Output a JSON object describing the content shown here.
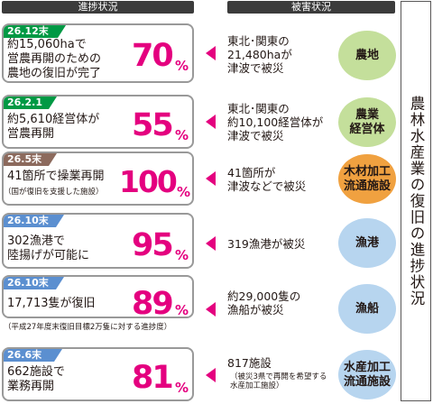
{
  "headers": {
    "progress": "進捗状況",
    "damage": "被害状況"
  },
  "side_title": "農林水産業の復旧の進捗状況",
  "colors": {
    "header": "#3b3b3b",
    "percent": "#e4007f",
    "arrow": "#e4007f",
    "green_tag": "#009944",
    "brown_tag": "#8c6a5d",
    "blue_tag": "#5b8fd0",
    "green_circle": "#c4df9b",
    "orange_circle": "#f0a140",
    "blue_circle": "#b7d5ef"
  },
  "rows": [
    {
      "date": "26.12末",
      "desc": "約15,060haで\n営農再開のための\n農地の復旧が完了",
      "desc_note": "",
      "percent": "70",
      "unit": "%",
      "damage": "東北･関東の\n21,480haが\n津波で被災",
      "damage_note": "",
      "sector": "農地"
    },
    {
      "date": "26.2.1",
      "desc": "約5,610経営体が\n営農再開",
      "desc_note": "",
      "percent": "55",
      "unit": "%",
      "damage": "東北･関東の\n約10,100経営体が\n津波で被災",
      "damage_note": "",
      "sector": "農業\n経営体"
    },
    {
      "date": "26.5末",
      "desc": "41箇所で操業再開",
      "desc_note": "（国が復旧を支援した施設）",
      "percent": "100",
      "unit": "%",
      "damage": "41箇所が\n津波などで被災",
      "damage_note": "",
      "sector": "木材加工\n流通施設"
    },
    {
      "date": "26.10末",
      "desc": "302漁港で\n陸揚げが可能に",
      "desc_note": "",
      "percent": "95",
      "unit": "%",
      "damage": "319漁港が被災",
      "damage_note": "",
      "sector": "漁港"
    },
    {
      "date": "26.10末",
      "desc": "17,713隻が復旧",
      "desc_note": "（平成27年度末復旧目標2万隻に対する進捗度）",
      "percent": "89",
      "unit": "%",
      "damage": "約29,000隻の\n漁船が被災",
      "damage_note": "",
      "sector": "漁船"
    },
    {
      "date": "26.6末",
      "desc": "662施設で\n業務再開",
      "desc_note": "",
      "percent": "81",
      "unit": "%",
      "damage": "817施設",
      "damage_note": "（被災3県で再開を希望する\n水産加工施設）",
      "sector": "水産加工\n流通施設"
    }
  ]
}
